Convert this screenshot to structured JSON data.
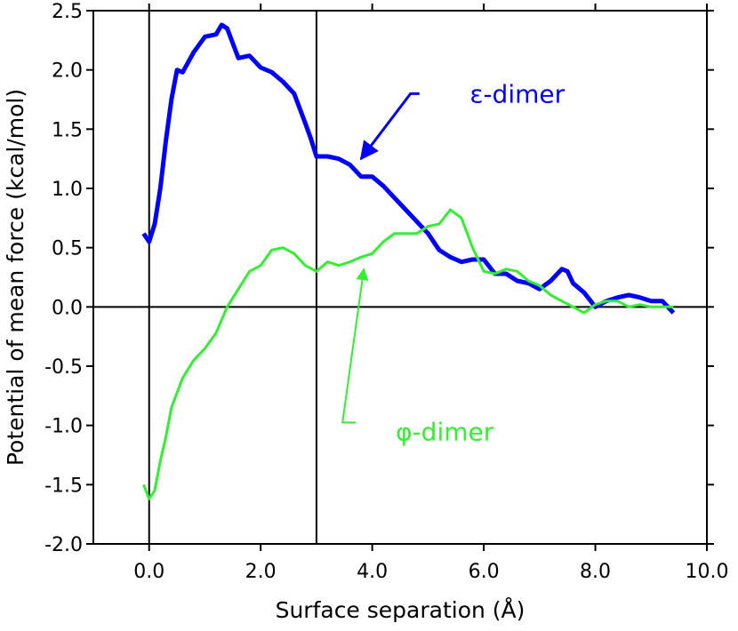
{
  "chart_data": {
    "type": "line",
    "title": "",
    "xlabel": "Surface separation (Å)",
    "ylabel": "Potential of mean force (kcal/mol)",
    "xlim": [
      -1.0,
      10.0
    ],
    "ylim": [
      -2.0,
      2.5
    ],
    "xticks": [
      0.0,
      2.0,
      4.0,
      6.0,
      8.0,
      10.0
    ],
    "xtick_labels": [
      "0.0",
      "2.0",
      "4.0",
      "6.0",
      "8.0",
      "10.0"
    ],
    "yticks": [
      -2.0,
      -1.5,
      -1.0,
      -0.5,
      0.0,
      0.5,
      1.0,
      1.5,
      2.0,
      2.5
    ],
    "ytick_labels": [
      "-2.0",
      "-1.5",
      "-1.0",
      "-0.5",
      "0.0",
      "0.5",
      "1.0",
      "1.5",
      "2.0",
      "2.5"
    ],
    "grid": false,
    "reference_lines": {
      "x": [
        0.0,
        3.0
      ],
      "y": [
        0.0
      ]
    },
    "series": [
      {
        "name": "ε-dimer",
        "color": "#0000ff",
        "x": [
          -0.1,
          0.0,
          0.1,
          0.2,
          0.3,
          0.4,
          0.5,
          0.6,
          0.8,
          1.0,
          1.2,
          1.3,
          1.4,
          1.6,
          1.8,
          2.0,
          2.2,
          2.4,
          2.6,
          2.8,
          2.9,
          3.0,
          3.2,
          3.4,
          3.6,
          3.8,
          4.0,
          4.2,
          4.4,
          4.6,
          4.8,
          5.0,
          5.2,
          5.4,
          5.6,
          5.8,
          6.0,
          6.2,
          6.4,
          6.6,
          6.8,
          7.0,
          7.2,
          7.4,
          7.5,
          7.6,
          7.8,
          8.0,
          8.2,
          8.4,
          8.6,
          8.8,
          9.0,
          9.2,
          9.4
        ],
        "y": [
          0.62,
          0.55,
          0.7,
          1.0,
          1.4,
          1.75,
          2.0,
          1.98,
          2.15,
          2.28,
          2.3,
          2.38,
          2.35,
          2.1,
          2.12,
          2.02,
          1.98,
          1.9,
          1.8,
          1.55,
          1.42,
          1.27,
          1.27,
          1.25,
          1.2,
          1.1,
          1.1,
          1.02,
          0.92,
          0.82,
          0.72,
          0.62,
          0.48,
          0.42,
          0.38,
          0.4,
          0.4,
          0.28,
          0.28,
          0.22,
          0.2,
          0.15,
          0.22,
          0.32,
          0.3,
          0.2,
          0.12,
          0.0,
          0.05,
          0.08,
          0.1,
          0.08,
          0.05,
          0.05,
          -0.05
        ]
      },
      {
        "name": "φ-dimer",
        "color": "#33ee33",
        "x": [
          -0.1,
          0.0,
          0.1,
          0.2,
          0.3,
          0.4,
          0.6,
          0.8,
          1.0,
          1.2,
          1.4,
          1.6,
          1.8,
          2.0,
          2.2,
          2.4,
          2.6,
          2.8,
          3.0,
          3.2,
          3.4,
          3.6,
          3.8,
          4.0,
          4.2,
          4.4,
          4.6,
          4.8,
          5.0,
          5.2,
          5.4,
          5.6,
          5.8,
          6.0,
          6.2,
          6.4,
          6.6,
          6.8,
          7.0,
          7.2,
          7.4,
          7.6,
          7.8,
          8.0,
          8.2,
          8.4,
          8.6,
          8.8,
          9.0,
          9.2,
          9.4
        ],
        "y": [
          -1.5,
          -1.62,
          -1.55,
          -1.3,
          -1.1,
          -0.85,
          -0.6,
          -0.45,
          -0.35,
          -0.22,
          0.0,
          0.15,
          0.3,
          0.35,
          0.48,
          0.5,
          0.45,
          0.35,
          0.3,
          0.38,
          0.35,
          0.38,
          0.42,
          0.45,
          0.55,
          0.62,
          0.62,
          0.62,
          0.68,
          0.7,
          0.82,
          0.75,
          0.5,
          0.3,
          0.28,
          0.32,
          0.3,
          0.22,
          0.18,
          0.1,
          0.05,
          0.0,
          -0.05,
          0.02,
          0.05,
          0.05,
          0.0,
          0.02,
          0.0,
          0.0,
          0.0
        ]
      }
    ],
    "annotations": [
      {
        "text": "ε-dimer",
        "series": 0,
        "label_at": [
          6.6,
          1.8
        ],
        "arrow_to": [
          3.8,
          1.25
        ]
      },
      {
        "text": "φ-dimer",
        "series": 1,
        "label_at": [
          5.3,
          -1.05
        ],
        "arrow_to": [
          3.85,
          0.32
        ]
      }
    ]
  }
}
